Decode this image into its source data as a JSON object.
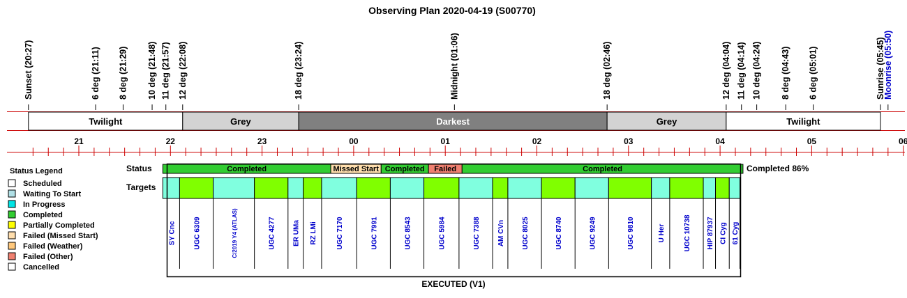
{
  "title": "Observing Plan 2020-04-19 (S00770)",
  "events": [
    {
      "label": "Sunset (20:27)",
      "time": "20:27"
    },
    {
      "label": "6 deg (21:11)",
      "time": "21:11"
    },
    {
      "label": "8 deg (21:29)",
      "time": "21:29"
    },
    {
      "label": "10 deg (21:48)",
      "time": "21:48"
    },
    {
      "label": "11 deg (21:57)",
      "time": "21:57"
    },
    {
      "label": "12 deg (22:08)",
      "time": "22:08"
    },
    {
      "label": "18 deg (23:24)",
      "time": "23:24"
    },
    {
      "label": "Midnight (01:06)",
      "time": "01:06"
    },
    {
      "label": "18 deg (02:46)",
      "time": "02:46"
    },
    {
      "label": "12 deg (04:04)",
      "time": "04:04"
    },
    {
      "label": "11 deg (04:14)",
      "time": "04:14"
    },
    {
      "label": "10 deg (04:24)",
      "time": "04:24"
    },
    {
      "label": "8 deg (04:43)",
      "time": "04:43"
    },
    {
      "label": "6 deg (05:01)",
      "time": "05:01"
    },
    {
      "label": "Sunrise (05:45)",
      "time": "05:45"
    },
    {
      "label": "Moonrise (05:50)",
      "time": "05:50",
      "color": "#0000cc"
    }
  ],
  "bands": [
    {
      "label": "Twilight",
      "start": "20:27",
      "end": "22:08",
      "color": "#ffffff",
      "text_color": "#000000"
    },
    {
      "label": "Grey",
      "start": "22:08",
      "end": "23:24",
      "color": "#d3d3d3",
      "text_color": "#000000"
    },
    {
      "label": "Darkest",
      "start": "23:24",
      "end": "02:46",
      "color": "#808080",
      "text_color": "#ffffff"
    },
    {
      "label": "Grey",
      "start": "02:46",
      "end": "04:04",
      "color": "#d3d3d3",
      "text_color": "#000000"
    },
    {
      "label": "Twilight",
      "start": "04:04",
      "end": "05:45",
      "color": "#ffffff",
      "text_color": "#000000"
    }
  ],
  "hours": [
    "21",
    "22",
    "23",
    "00",
    "01",
    "02",
    "03",
    "04",
    "05",
    "06"
  ],
  "row_labels": {
    "status": "Status",
    "targets": "Targets"
  },
  "status_segments": [
    {
      "label": "Completed",
      "start": "21:55",
      "end": "23:45",
      "status": "Completed"
    },
    {
      "label": "Missed Start",
      "start": "23:45",
      "end": "00:18",
      "status": "Failed (Missed Start)"
    },
    {
      "label": "Completed",
      "start": "00:18",
      "end": "00:49",
      "status": "Completed"
    },
    {
      "label": "Failed",
      "start": "00:49",
      "end": "01:11",
      "status": "Failed (Other)"
    },
    {
      "label": "Completed",
      "start": "01:11",
      "end": "04:15",
      "status": "Completed"
    }
  ],
  "summary": "Completed 86%",
  "targets": [
    {
      "name": "SY Cnc",
      "start": "21:55",
      "end": "22:06",
      "color": "#80ffdf"
    },
    {
      "name": "UGC 6309",
      "start": "22:06",
      "end": "22:28",
      "color": "#80ff00"
    },
    {
      "name": "C/2019 Y4 (ATLAS)",
      "start": "22:28",
      "end": "22:55",
      "color": "#80ffdf"
    },
    {
      "name": "UGC 4277",
      "start": "22:55",
      "end": "23:17",
      "color": "#80ff00"
    },
    {
      "name": "ER UMa",
      "start": "23:17",
      "end": "23:27",
      "color": "#80ffdf"
    },
    {
      "name": "RZ LMi",
      "start": "23:27",
      "end": "23:39",
      "color": "#80ff00"
    },
    {
      "name": "UGC 7170",
      "start": "23:39",
      "end": "24:02",
      "color": "#80ffdf"
    },
    {
      "name": "UGC 7991",
      "start": "24:02",
      "end": "24:24",
      "color": "#80ff00"
    },
    {
      "name": "UGC 8543",
      "start": "24:24",
      "end": "24:46",
      "color": "#80ffdf"
    },
    {
      "name": "UGC 5984",
      "start": "24:46",
      "end": "25:09",
      "color": "#80ff00"
    },
    {
      "name": "UGC 7388",
      "start": "25:09",
      "end": "25:31",
      "color": "#80ffdf"
    },
    {
      "name": "AM CVn",
      "start": "25:31",
      "end": "25:41",
      "color": "#80ff00"
    },
    {
      "name": "UGC 8025",
      "start": "25:41",
      "end": "26:03",
      "color": "#80ffdf"
    },
    {
      "name": "UGC 8740",
      "start": "26:03",
      "end": "26:25",
      "color": "#80ff00"
    },
    {
      "name": "UGC 9249",
      "start": "26:25",
      "end": "26:47",
      "color": "#80ffdf"
    },
    {
      "name": "UGC 9810",
      "start": "26:47",
      "end": "27:15",
      "color": "#80ff00"
    },
    {
      "name": "U Her",
      "start": "27:15",
      "end": "27:27",
      "color": "#80ffdf"
    },
    {
      "name": "UGC 10738",
      "start": "27:27",
      "end": "27:49",
      "color": "#80ff00"
    },
    {
      "name": "HIP 87937",
      "start": "27:49",
      "end": "27:57",
      "color": "#80ffdf"
    },
    {
      "name": "CI Cyg",
      "start": "27:57",
      "end": "28:06",
      "color": "#80ff00"
    },
    {
      "name": "61 Cyg",
      "start": "28:06",
      "end": "28:13",
      "color": "#80ffdf"
    }
  ],
  "footer": "EXECUTED (V1)",
  "legend": {
    "title": "Status Legend",
    "items": [
      {
        "label": "Scheduled",
        "color": "#ffffff"
      },
      {
        "label": "Waiting To Start",
        "color": "#b0e0e6"
      },
      {
        "label": "In Progress",
        "color": "#00e5e5"
      },
      {
        "label": "Completed",
        "color": "#32cd32"
      },
      {
        "label": "Partially Completed",
        "color": "#ffff00"
      },
      {
        "label": "Failed (Missed Start)",
        "color": "#ffdead"
      },
      {
        "label": "Failed (Weather)",
        "color": "#ffc87c"
      },
      {
        "label": "Failed (Other)",
        "color": "#f08070"
      },
      {
        "label": "Cancelled",
        "color": "#ffffff"
      }
    ]
  },
  "colors": {
    "axis_line": "#cc0000",
    "completed": "#32cd32",
    "missed_start": "#ffdead",
    "failed": "#f08070",
    "target_text": "#0000cc"
  }
}
